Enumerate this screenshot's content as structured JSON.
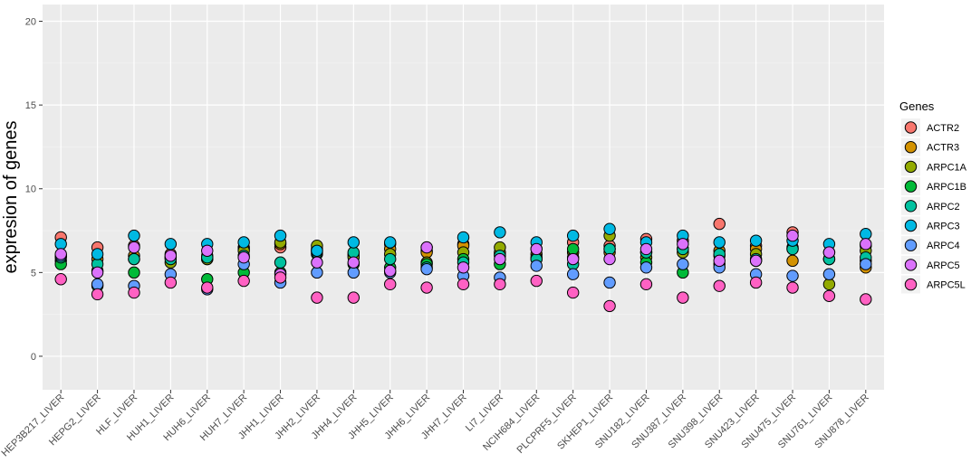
{
  "chart_data": {
    "type": "scatter",
    "title": "",
    "xlabel": "",
    "ylabel": "expresion of genes",
    "ylim": [
      -2,
      21
    ],
    "yticks": [
      0,
      5,
      10,
      15,
      20
    ],
    "grid": true,
    "legend_title": "Genes",
    "legend_position": "right",
    "categories": [
      "HEP3B217_LIVER",
      "HEPG2_LIVER",
      "HLF_LIVER",
      "HUH1_LIVER",
      "HUH6_LIVER",
      "HUH7_LIVER",
      "JHH1_LIVER",
      "JHH2_LIVER",
      "JHH4_LIVER",
      "JHH5_LIVER",
      "JHH6_LIVER",
      "JHH7_LIVER",
      "LI7_LIVER",
      "NCIH684_LIVER",
      "PLCPRF5_LIVER",
      "SKHEP1_LIVER",
      "SNU182_LIVER",
      "SNU387_LIVER",
      "SNU398_LIVER",
      "SNU423_LIVER",
      "SNU475_LIVER",
      "SNU761_LIVER",
      "SNU878_LIVER"
    ],
    "series": [
      {
        "name": "ACTR2",
        "color": "#F8766D",
        "values": [
          7.1,
          6.5,
          6.6,
          6.1,
          6.0,
          6.5,
          6.5,
          6.4,
          6.1,
          6.7,
          6.3,
          6.7,
          6.1,
          6.4,
          6.8,
          6.6,
          7.0,
          6.9,
          7.9,
          6.6,
          7.4,
          6.2,
          6.6
        ]
      },
      {
        "name": "ACTR3",
        "color": "#D39200",
        "values": [
          6.0,
          5.8,
          6.0,
          5.9,
          5.8,
          6.4,
          6.7,
          6.3,
          6.0,
          6.4,
          6.2,
          6.6,
          6.2,
          6.1,
          6.2,
          6.2,
          6.2,
          6.4,
          6.3,
          6.4,
          5.7,
          5.8,
          5.3
        ]
      },
      {
        "name": "ARPC1A",
        "color": "#93AA00",
        "values": [
          5.7,
          5.1,
          5.8,
          5.6,
          5.8,
          6.3,
          6.8,
          6.6,
          5.9,
          6.1,
          5.6,
          6.2,
          6.5,
          5.9,
          5.9,
          7.2,
          5.9,
          6.2,
          6.0,
          6.1,
          6.5,
          4.3,
          6.3
        ]
      },
      {
        "name": "ARPC1B",
        "color": "#00BA38",
        "values": [
          5.5,
          4.2,
          5.0,
          5.9,
          4.6,
          5.0,
          5.0,
          6.1,
          5.5,
          5.3,
          5.5,
          5.8,
          5.5,
          5.8,
          6.4,
          6.4,
          5.6,
          5.0,
          5.5,
          5.7,
          6.4,
          5.8,
          5.7
        ]
      },
      {
        "name": "ARPC2",
        "color": "#00C19F",
        "values": [
          5.9,
          5.5,
          5.8,
          5.8,
          5.9,
          6.0,
          5.6,
          6.2,
          6.2,
          5.8,
          5.3,
          5.6,
          6.0,
          5.8,
          5.5,
          6.4,
          6.2,
          6.4,
          6.1,
          5.8,
          6.4,
          5.8,
          5.9
        ]
      },
      {
        "name": "ARPC3",
        "color": "#00B9E3",
        "values": [
          6.7,
          6.1,
          7.2,
          6.7,
          6.7,
          6.8,
          7.2,
          6.3,
          6.8,
          6.8,
          6.5,
          7.1,
          7.4,
          6.8,
          7.2,
          7.6,
          6.8,
          7.2,
          6.8,
          6.9,
          6.9,
          6.7,
          7.3
        ]
      },
      {
        "name": "ARPC4",
        "color": "#619CFF",
        "values": [
          6.0,
          4.3,
          4.2,
          4.9,
          4.0,
          5.5,
          4.4,
          5.0,
          5.0,
          5.0,
          5.2,
          4.8,
          4.7,
          5.4,
          4.9,
          4.4,
          5.3,
          5.5,
          5.3,
          4.9,
          4.8,
          4.9,
          5.5
        ]
      },
      {
        "name": "ARPC5",
        "color": "#DB72FB",
        "values": [
          6.1,
          5.0,
          6.5,
          6.0,
          6.3,
          5.9,
          4.9,
          5.6,
          5.6,
          5.1,
          6.5,
          5.3,
          5.8,
          6.4,
          5.8,
          5.8,
          6.4,
          6.7,
          5.7,
          5.7,
          7.2,
          6.2,
          6.7
        ]
      },
      {
        "name": "ARPC5L",
        "color": "#FF61C3",
        "values": [
          4.6,
          3.7,
          3.8,
          4.4,
          4.1,
          4.5,
          4.7,
          3.5,
          3.5,
          4.3,
          4.1,
          4.3,
          4.3,
          4.5,
          3.8,
          3.0,
          4.3,
          3.5,
          4.2,
          4.4,
          4.1,
          3.6,
          3.4
        ]
      }
    ]
  }
}
